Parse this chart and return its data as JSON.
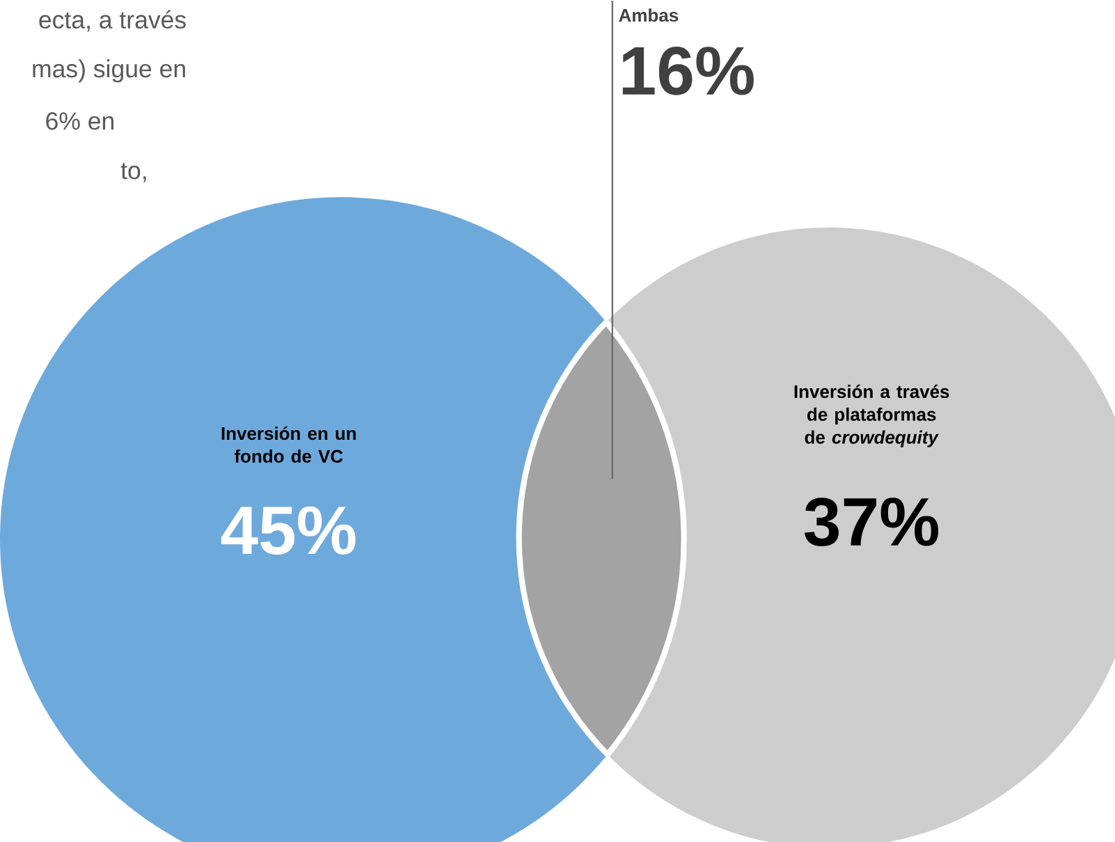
{
  "chart_data": {
    "type": "other",
    "categories": [
      "Inversión en un fondo de VC",
      "Inversión a través de plataformas de *crowdequity*",
      "Ambas"
    ],
    "values": [
      45,
      37,
      16
    ],
    "value_labels": [
      "45%",
      "37%",
      "16%"
    ],
    "colors": [
      "#6ea9dc",
      "#cdcdcd",
      "#a3a3a3"
    ],
    "annotations": [
      "ecta, a través",
      "mas) sigue en",
      "6% en",
      "to,"
    ]
  }
}
